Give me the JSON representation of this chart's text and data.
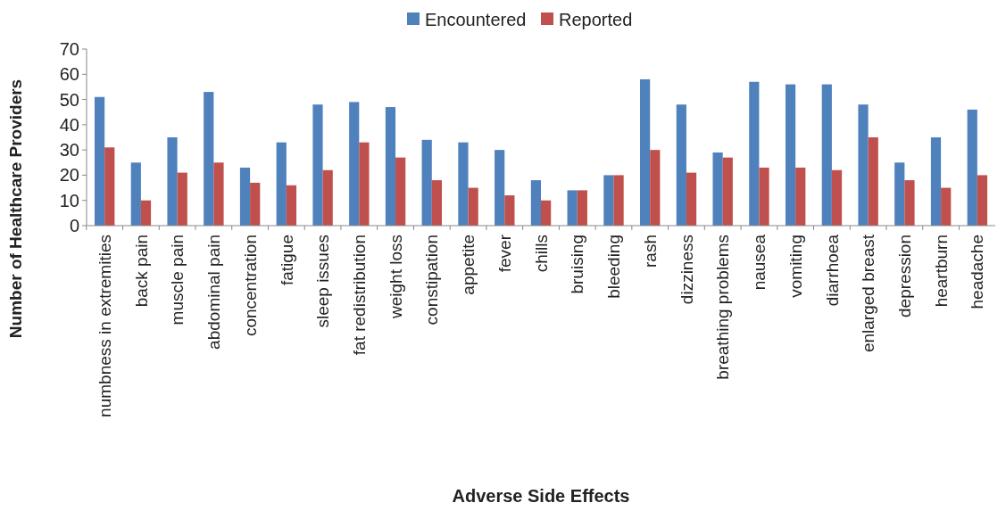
{
  "chart_data": {
    "type": "bar",
    "xlabel": "Adverse Side Effects",
    "ylabel": "Number of Healthcare Providers",
    "categories": [
      "numbness in extremities",
      "back pain",
      "muscle pain",
      "abdominal pain",
      "concentration",
      "fatigue",
      "sleep issues",
      "fat redistribution",
      "weight loss",
      "constipation",
      "appetite",
      "fever",
      "chills",
      "bruising",
      "bleeding",
      "rash",
      "dizziness",
      "breathing problems",
      "nausea",
      "vomiting",
      "diarrhoea",
      "enlarged breast",
      "depression",
      "heartburn",
      "headache"
    ],
    "series": [
      {
        "name": "Encountered",
        "color": "#4f81bd",
        "values": [
          51,
          25,
          35,
          53,
          23,
          33,
          48,
          49,
          47,
          34,
          33,
          30,
          18,
          14,
          20,
          58,
          48,
          29,
          57,
          56,
          56,
          48,
          25,
          35,
          46
        ]
      },
      {
        "name": "Reported",
        "color": "#c0504d",
        "values": [
          31,
          10,
          21,
          25,
          17,
          16,
          22,
          33,
          27,
          18,
          15,
          12,
          10,
          14,
          20,
          30,
          21,
          27,
          23,
          23,
          22,
          35,
          18,
          15,
          20
        ]
      }
    ],
    "ylim": [
      0,
      70
    ],
    "yticks": [
      0,
      10,
      20,
      30,
      40,
      50,
      60,
      70
    ],
    "grid": false,
    "legend": "top"
  }
}
